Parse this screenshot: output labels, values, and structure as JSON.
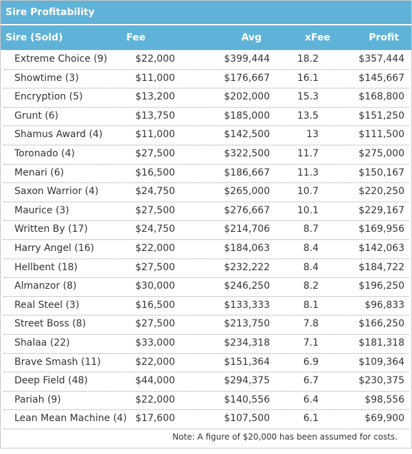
{
  "title": "Sire Profitability",
  "table": {
    "header": [
      "Sire (Sold)",
      "Fee",
      "Avg",
      "xFee",
      "Profit"
    ],
    "rows": [
      [
        "Extreme Choice (9)",
        "$22,000",
        "$399,444",
        "18.2",
        "$357,444"
      ],
      [
        "Showtime (3)",
        "$11,000",
        "$176,667",
        "16.1",
        "$145,667"
      ],
      [
        "Encryption (5)",
        "$13,200",
        "$202,000",
        "15.3",
        "$168,800"
      ],
      [
        "Grunt (6)",
        "$13,750",
        "$185,000",
        "13.5",
        "$151,250"
      ],
      [
        "Shamus Award (4)",
        "$11,000",
        "$142,500",
        "13",
        "$111,500"
      ],
      [
        "Toronado (4)",
        "$27,500",
        "$322,500",
        "11.7",
        "$275,000"
      ],
      [
        "Menari (6)",
        "$16,500",
        "$186,667",
        "11.3",
        "$150,167"
      ],
      [
        "Saxon Warrior (4)",
        "$24,750",
        "$265,000",
        "10.7",
        "$220,250"
      ],
      [
        "Maurice (3)",
        "$27,500",
        "$276,667",
        "10.1",
        "$229,167"
      ],
      [
        "Written By (17)",
        "$24,750",
        "$214,706",
        "8.7",
        "$169,956"
      ],
      [
        "Harry Angel (16)",
        "$22,000",
        "$184,063",
        "8.4",
        "$142,063"
      ],
      [
        "Hellbent (18)",
        "$27,500",
        "$232,222",
        "8.4",
        "$184,722"
      ],
      [
        "Almanzor (8)",
        "$30,000",
        "$246,250",
        "8.2",
        "$196,250"
      ],
      [
        "Real Steel (3)",
        "$16,500",
        "$133,333",
        "8.1",
        "$96,833"
      ],
      [
        "Street Boss (8)",
        "$27,500",
        "$213,750",
        "7.8",
        "$166,250"
      ],
      [
        "Shalaa (22)",
        "$33,000",
        "$234,318",
        "7.1",
        "$181,318"
      ],
      [
        "Brave Smash (11)",
        "$22,000",
        "$151,364",
        "6.9",
        "$109,364"
      ],
      [
        "Deep Field (48)",
        "$44,000",
        "$294,375",
        "6.7",
        "$230,375"
      ],
      [
        "Pariah (9)",
        "$22,000",
        "$140,556",
        "6.4",
        "$98,556"
      ],
      [
        "Lean Mean Machine (4)",
        "$17,600",
        "$107,500",
        "6.1",
        "$69,900"
      ]
    ]
  },
  "note": "Note: A figure of $20,000 has been assumed for costs."
}
